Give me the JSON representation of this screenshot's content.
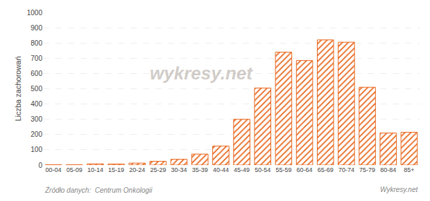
{
  "chart_data": {
    "type": "bar",
    "categories": [
      "00-04",
      "05-09",
      "10-14",
      "15-19",
      "20-24",
      "25-29",
      "30-34",
      "35-39",
      "40-44",
      "45-49",
      "50-54",
      "55-59",
      "60-64",
      "65-69",
      "70-74",
      "75-79",
      "80-84",
      "85+"
    ],
    "values": [
      2,
      2,
      8,
      7,
      13,
      25,
      38,
      72,
      125,
      300,
      505,
      740,
      685,
      820,
      805,
      510,
      210,
      215
    ],
    "color": "#e8651a",
    "ylabel": "Liczba zachorowań",
    "ylim": [
      0,
      1000
    ],
    "yticks": [
      0,
      100,
      200,
      300,
      400,
      500,
      600,
      700,
      800,
      900,
      1000
    ],
    "grid": true,
    "annotations": [
      "wykresy.net",
      "Źródło danych:  Centrum Onkologii",
      "Wykresy.net"
    ]
  }
}
